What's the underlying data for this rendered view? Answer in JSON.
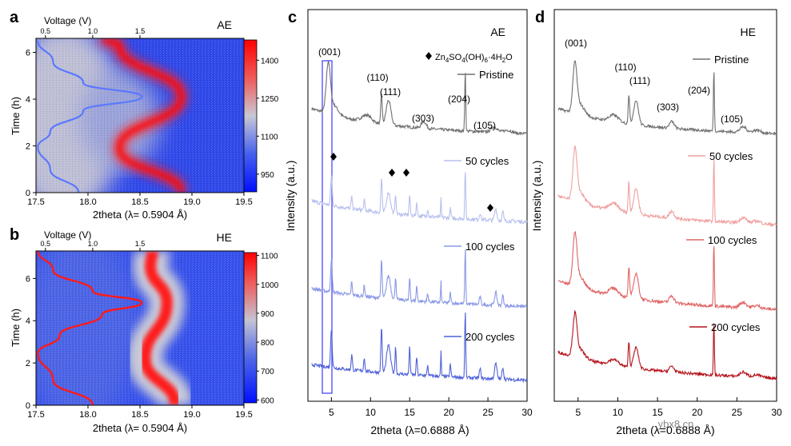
{
  "panels": {
    "a": "a",
    "b": "b",
    "c": "c",
    "d": "d"
  },
  "watermark": "ybx8.cn",
  "chart_data": [
    {
      "id": "a",
      "type": "heatmap",
      "title_tag": "AE",
      "xlabel": "2theta  (λ= 0.5904 Å)",
      "ylabel": "Time (h)",
      "top_axis_label": "Voltage (V)",
      "xlim": [
        17.5,
        19.5
      ],
      "ylim": [
        0,
        6.6
      ],
      "xticks": [
        "17.5",
        "18.0",
        "18.5",
        "19.0",
        "19.5"
      ],
      "yticks": [
        "0",
        "2",
        "4",
        "6"
      ],
      "top_ticks": [
        "0.5",
        "1.0",
        "1.5"
      ],
      "colorbar_ticks": [
        "950",
        "1100",
        "1250",
        "1400"
      ],
      "colorbar_range": [
        880,
        1480
      ],
      "peak_track": [
        [
          0,
          18.9
        ],
        [
          1.9,
          18.3
        ],
        [
          4.1,
          18.9
        ],
        [
          6.3,
          18.3
        ],
        [
          6.6,
          18.15
        ]
      ],
      "voltage_curve": [
        [
          0,
          0.85
        ],
        [
          1.0,
          0.55
        ],
        [
          1.95,
          0.42
        ],
        [
          2.6,
          0.55
        ],
        [
          3.5,
          0.9
        ],
        [
          4.1,
          1.52
        ],
        [
          4.7,
          0.9
        ],
        [
          5.6,
          0.58
        ],
        [
          6.5,
          0.42
        ]
      ]
    },
    {
      "id": "b",
      "type": "heatmap",
      "title_tag": "HE",
      "xlabel": "2theta  (λ= 0.5904 Å)",
      "ylabel": "Time (h)",
      "top_axis_label": "Voltage (V)",
      "xlim": [
        17.5,
        19.5
      ],
      "ylim": [
        0,
        7.3
      ],
      "xticks": [
        "17.5",
        "18.0",
        "18.5",
        "19.0",
        "19.5"
      ],
      "yticks": [
        "0",
        "2",
        "4",
        "6"
      ],
      "top_ticks": [
        "0.5",
        "1.0",
        "1.5"
      ],
      "colorbar_ticks": [
        "600",
        "700",
        "800",
        "900",
        "1000",
        "1100"
      ],
      "colorbar_range": [
        590,
        1110
      ],
      "peak_track": [
        [
          0,
          18.84
        ],
        [
          2.2,
          18.55
        ],
        [
          4.85,
          18.76
        ],
        [
          6.6,
          18.6
        ],
        [
          7.3,
          18.62
        ]
      ],
      "voltage_curve": [
        [
          0,
          1.0
        ],
        [
          1.2,
          0.58
        ],
        [
          2.45,
          0.42
        ],
        [
          3.3,
          0.65
        ],
        [
          4.3,
          1.1
        ],
        [
          4.85,
          1.52
        ],
        [
          5.4,
          1.0
        ],
        [
          6.4,
          0.58
        ],
        [
          7.3,
          0.42
        ]
      ]
    },
    {
      "id": "c",
      "type": "line",
      "title_tag": "AE",
      "xlabel": "2theta  (λ=0.6888 Å)",
      "ylabel": "Intensity (a.u.)",
      "xlim": [
        2,
        30
      ],
      "xticks": [
        "5",
        "10",
        "15",
        "20",
        "25",
        "30"
      ],
      "legend_marker_label": "Zn",
      "legend_formula": [
        "Zn",
        "4",
        "SO",
        "4",
        "(OH)",
        "6",
        "·4H",
        "2",
        "O"
      ],
      "peak_labels": [
        "(001)",
        "(110)",
        "(111)",
        "(303)",
        "(204)",
        "(105)"
      ],
      "series": [
        {
          "name": "Pristine",
          "color": "#707070"
        },
        {
          "name": "50 cycles",
          "color": "#b8c0ec"
        },
        {
          "name": "100 cycles",
          "color": "#8a98e6"
        },
        {
          "name": "200 cycles",
          "color": "#4f62d8"
        }
      ]
    },
    {
      "id": "d",
      "type": "line",
      "title_tag": "HE",
      "xlabel": "2theta  (λ=0.6888 Å)",
      "ylabel": "Intensity (a.u.)",
      "xlim": [
        2,
        30
      ],
      "xticks": [
        "5",
        "10",
        "15",
        "20",
        "25",
        "30"
      ],
      "peak_labels": [
        "(001)",
        "(110)",
        "(111)",
        "(303)",
        "(204)",
        "(105)"
      ],
      "series": [
        {
          "name": "Pristine",
          "color": "#707070"
        },
        {
          "name": "50 cycles",
          "color": "#f0a0a0"
        },
        {
          "name": "100 cycles",
          "color": "#e06464"
        },
        {
          "name": "200 cycles",
          "color": "#b5121b"
        }
      ]
    }
  ]
}
